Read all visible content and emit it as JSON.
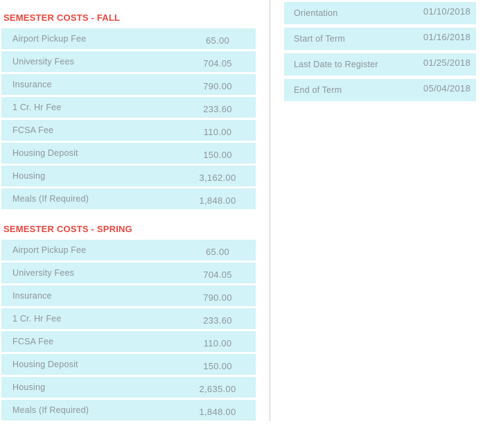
{
  "colors": {
    "row_background": "#d2f3f7",
    "text_gray": "#8d959c",
    "heading_red": "#e8463e",
    "divider_gray": "#cccccc",
    "page_background": "#ffffff"
  },
  "fall": {
    "title": "SEMESTER COSTS - FALL",
    "rows": [
      {
        "label": "Airport Pickup Fee",
        "value": "65.00"
      },
      {
        "label": "University Fees",
        "value": "704.05"
      },
      {
        "label": "Insurance",
        "value": "790.00"
      },
      {
        "label": "1 Cr. Hr Fee",
        "value": "233.60"
      },
      {
        "label": "FCSA Fee",
        "value": "110.00"
      },
      {
        "label": "Housing Deposit",
        "value": "150.00"
      },
      {
        "label": "Housing",
        "value": "3,162.00"
      },
      {
        "label": "Meals (If Required)",
        "value": "1,848.00"
      }
    ]
  },
  "spring": {
    "title": "SEMESTER COSTS - SPRING",
    "rows": [
      {
        "label": "Airport Pickup Fee",
        "value": "65.00"
      },
      {
        "label": "University Fees",
        "value": "704.05"
      },
      {
        "label": "Insurance",
        "value": "790.00"
      },
      {
        "label": "1 Cr. Hr Fee",
        "value": "233.60"
      },
      {
        "label": "FCSA Fee",
        "value": "110.00"
      },
      {
        "label": "Housing Deposit",
        "value": "150.00"
      },
      {
        "label": "Housing",
        "value": "2,635.00"
      },
      {
        "label": "Meals (If Required)",
        "value": "1,848.00"
      }
    ]
  },
  "dates": {
    "rows": [
      {
        "label": "Orientation",
        "date": "01/10/2018"
      },
      {
        "label": "Start of Term",
        "date": "01/16/2018"
      },
      {
        "label": "Last Date to Register",
        "date": "01/25/2018"
      },
      {
        "label": "End of Term",
        "date": "05/04/2018"
      }
    ]
  }
}
